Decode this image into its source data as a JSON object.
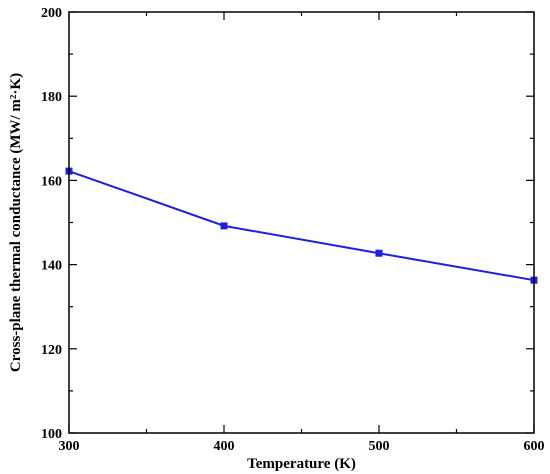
{
  "chart_data": {
    "type": "line",
    "xlabel": "Temperature (K)",
    "ylabel": "Cross-plane thermal conductance (MW/ m²·K)",
    "xlim": [
      300,
      600
    ],
    "ylim": [
      100,
      200
    ],
    "x_ticks": [
      300,
      400,
      500,
      600
    ],
    "y_ticks": [
      100,
      120,
      140,
      160,
      180,
      200
    ],
    "x_tick_labels": [
      "300",
      "400",
      "500",
      "600"
    ],
    "y_tick_labels": [
      "100",
      "120",
      "140",
      "160",
      "180",
      "200"
    ],
    "grid": false,
    "series": [
      {
        "x": [
          300,
          400,
          500,
          600
        ],
        "values": [
          162.2,
          149.2,
          142.7,
          136.3
        ],
        "color": "#1f1fe6",
        "marker": "square"
      }
    ]
  }
}
